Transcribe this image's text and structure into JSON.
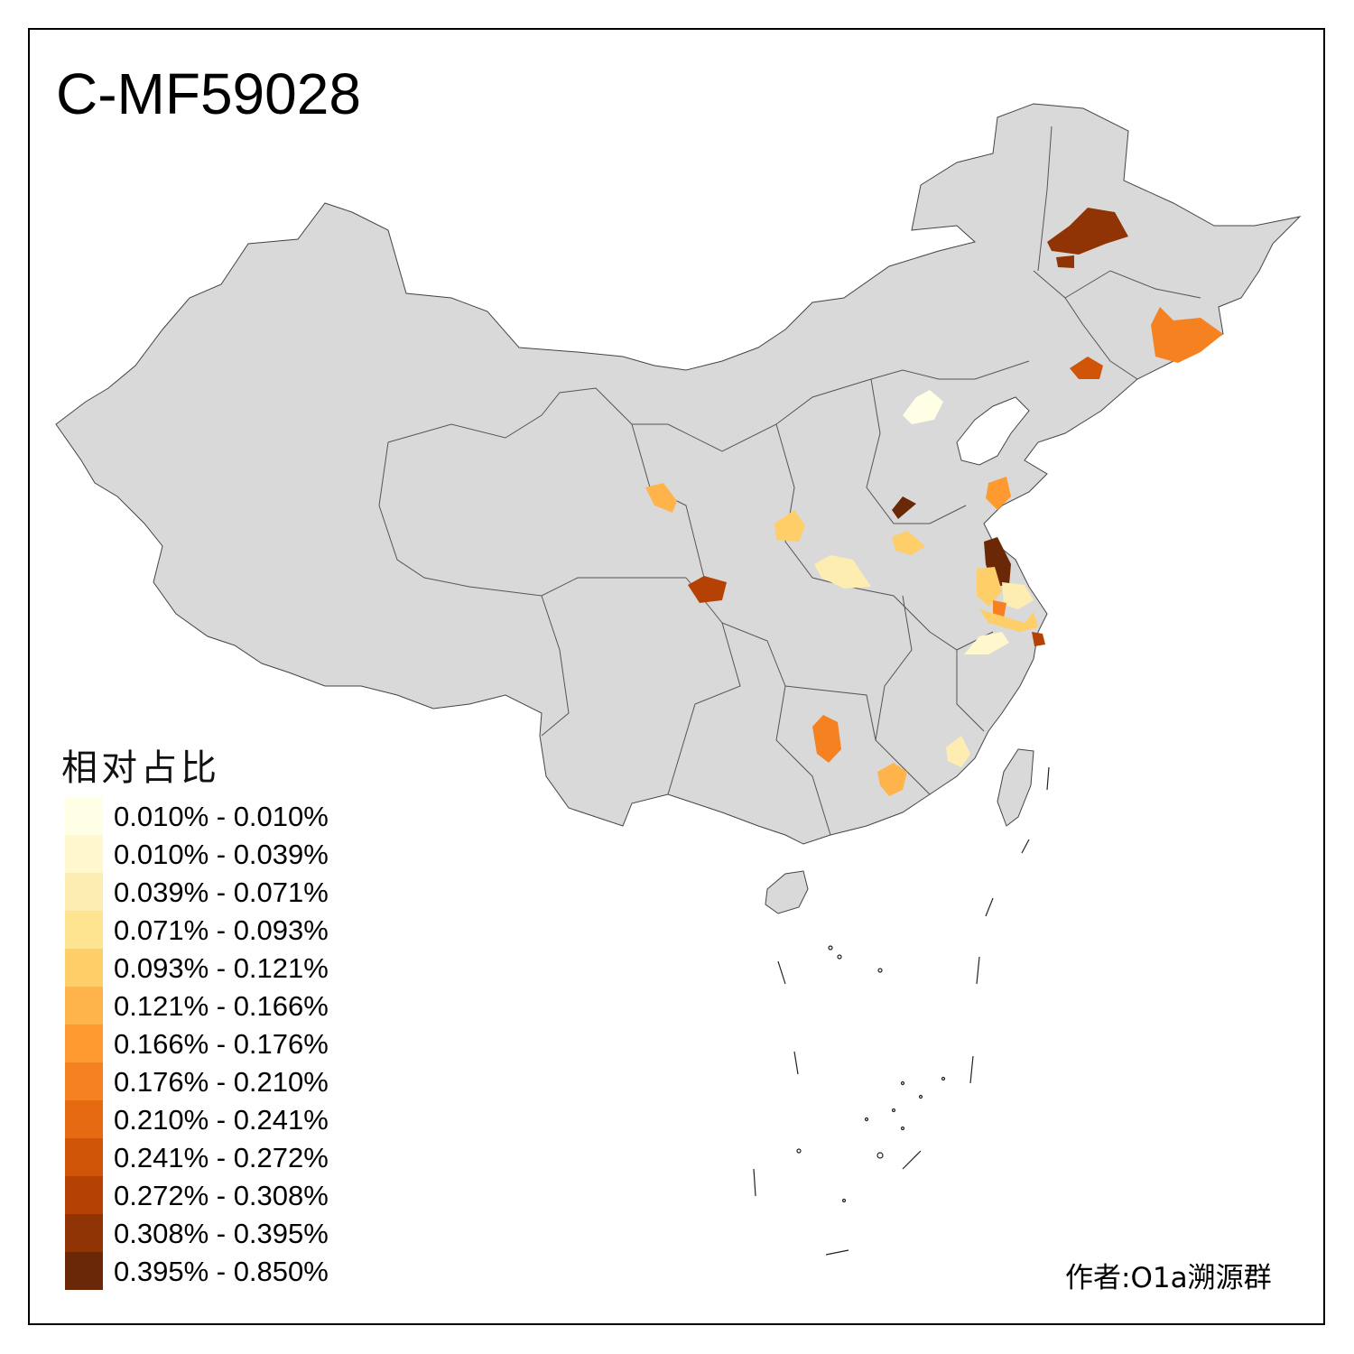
{
  "title": "C-MF59028",
  "legend": {
    "title": "相对占比",
    "items": [
      {
        "label": "0.010% - 0.010%",
        "color": "#ffffe5"
      },
      {
        "label": "0.010% - 0.039%",
        "color": "#fff8cc"
      },
      {
        "label": "0.039% - 0.071%",
        "color": "#feedb0"
      },
      {
        "label": "0.071% - 0.093%",
        "color": "#fee391"
      },
      {
        "label": "0.093% - 0.121%",
        "color": "#fece68"
      },
      {
        "label": "0.121% - 0.166%",
        "color": "#feb44a"
      },
      {
        "label": "0.166% - 0.176%",
        "color": "#fe9a2f"
      },
      {
        "label": "0.176% - 0.210%",
        "color": "#f58120"
      },
      {
        "label": "0.210% - 0.241%",
        "color": "#e66a11"
      },
      {
        "label": "0.241% - 0.272%",
        "color": "#d15508"
      },
      {
        "label": "0.272% - 0.308%",
        "color": "#b54204"
      },
      {
        "label": "0.308% - 0.395%",
        "color": "#903405"
      },
      {
        "label": "0.395% - 0.850%",
        "color": "#6b2806"
      }
    ]
  },
  "credit": "作者:O1a溯源群",
  "colors": {
    "land": "#d9d9d9",
    "border": "#444444",
    "frame": "#000000",
    "background": "#ffffff"
  }
}
